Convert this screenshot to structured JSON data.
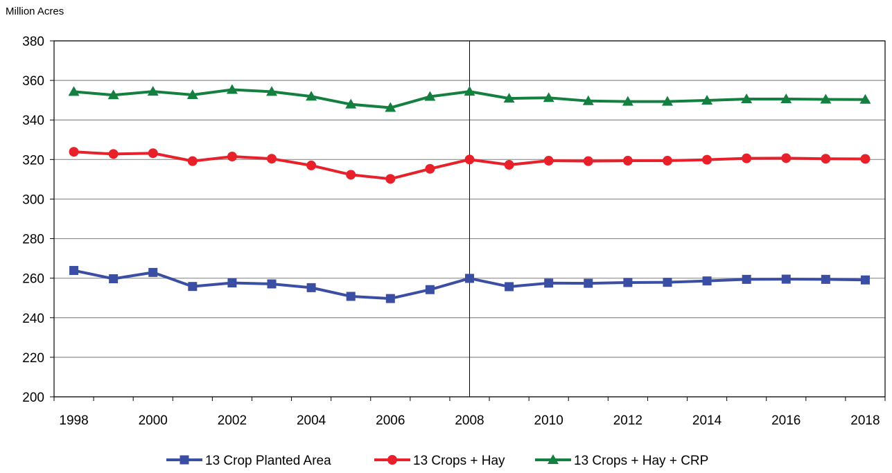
{
  "chart_data": {
    "type": "line",
    "ylabel": "Million Acres",
    "ylim": [
      200,
      380
    ],
    "yticks": [
      200,
      220,
      240,
      260,
      280,
      300,
      320,
      340,
      360,
      380
    ],
    "x": [
      1998,
      1999,
      2000,
      2001,
      2002,
      2003,
      2004,
      2005,
      2006,
      2007,
      2008,
      2009,
      2010,
      2011,
      2012,
      2013,
      2014,
      2015,
      2016,
      2017,
      2018
    ],
    "xticks": [
      "1998",
      "2000",
      "2002",
      "2004",
      "2006",
      "2008",
      "2010",
      "2012",
      "2014",
      "2016",
      "2018"
    ],
    "reference_line_x": 2008,
    "grid": "horizontal",
    "legend": "bottom",
    "series": [
      {
        "name": "13 Crop Planted Area",
        "color": "#3a4fa3",
        "marker": "square",
        "values": [
          263.9,
          259.7,
          262.9,
          255.8,
          257.6,
          257.1,
          255.2,
          250.8,
          249.7,
          254.2,
          259.9,
          255.7,
          257.5,
          257.4,
          257.8,
          257.9,
          258.6,
          259.4,
          259.5,
          259.4,
          259.1
        ]
      },
      {
        "name": "13 Crops + Hay",
        "color": "#e8202a",
        "marker": "circle",
        "values": [
          323.9,
          322.8,
          323.2,
          319.2,
          321.5,
          320.4,
          317.0,
          312.3,
          310.2,
          315.3,
          320.0,
          317.3,
          319.4,
          319.2,
          319.4,
          319.4,
          319.9,
          320.6,
          320.7,
          320.4,
          320.3
        ]
      },
      {
        "name": "13 Crops + Hay + CRP",
        "color": "#148040",
        "marker": "triangle",
        "values": [
          354.3,
          352.6,
          354.4,
          352.7,
          355.3,
          354.3,
          351.9,
          347.9,
          346.2,
          351.8,
          354.4,
          350.9,
          351.2,
          349.6,
          349.3,
          349.3,
          349.9,
          350.6,
          350.6,
          350.4,
          350.3
        ]
      }
    ]
  }
}
